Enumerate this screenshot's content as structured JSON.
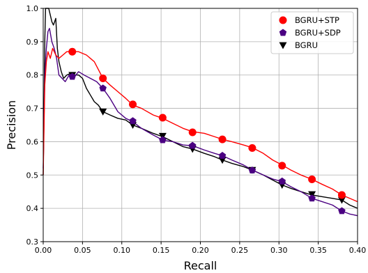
{
  "chart_data": {
    "type": "line",
    "xlabel": "Recall",
    "ylabel": "Precision",
    "xlim": [
      0.0,
      0.4
    ],
    "ylim": [
      0.3,
      1.0
    ],
    "xticks": [
      "0.00",
      "0.05",
      "0.10",
      "0.15",
      "0.20",
      "0.25",
      "0.30",
      "0.35",
      "0.40"
    ],
    "yticks": [
      "0.3",
      "0.4",
      "0.5",
      "0.6",
      "0.7",
      "0.8",
      "0.9",
      "1.0"
    ],
    "grid": true,
    "legend_position": "top-right",
    "series": [
      {
        "name": "BGRU+STP",
        "color": "#ff0000",
        "marker": "circle",
        "x": [
          0.0,
          0.002,
          0.004,
          0.006,
          0.009,
          0.012,
          0.016,
          0.02,
          0.025,
          0.03,
          0.037,
          0.045,
          0.055,
          0.065,
          0.076,
          0.085,
          0.095,
          0.105,
          0.114,
          0.125,
          0.14,
          0.152,
          0.165,
          0.178,
          0.19,
          0.205,
          0.218,
          0.228,
          0.24,
          0.255,
          0.266,
          0.28,
          0.292,
          0.304,
          0.315,
          0.328,
          0.342,
          0.355,
          0.368,
          0.38,
          0.39,
          0.4
        ],
        "y": [
          0.5,
          0.77,
          0.84,
          0.87,
          0.85,
          0.88,
          0.86,
          0.85,
          0.86,
          0.87,
          0.87,
          0.87,
          0.86,
          0.84,
          0.79,
          0.77,
          0.75,
          0.73,
          0.71,
          0.7,
          0.68,
          0.67,
          0.655,
          0.64,
          0.63,
          0.625,
          0.615,
          0.607,
          0.6,
          0.59,
          0.582,
          0.565,
          0.545,
          0.53,
          0.515,
          0.5,
          0.487,
          0.472,
          0.458,
          0.44,
          0.43,
          0.42
        ],
        "marker_x": [
          0.037,
          0.076,
          0.114,
          0.152,
          0.19,
          0.228,
          0.266,
          0.304,
          0.342,
          0.38
        ],
        "marker_y": [
          0.87,
          0.79,
          0.712,
          0.672,
          0.628,
          0.607,
          0.581,
          0.528,
          0.487,
          0.44
        ]
      },
      {
        "name": "BGRU+SDP",
        "color": "#4b0082",
        "marker": "pentagon",
        "x": [
          0.0,
          0.002,
          0.004,
          0.006,
          0.008,
          0.011,
          0.014,
          0.017,
          0.02,
          0.024,
          0.028,
          0.033,
          0.038,
          0.045,
          0.052,
          0.06,
          0.068,
          0.076,
          0.085,
          0.095,
          0.105,
          0.114,
          0.125,
          0.14,
          0.152,
          0.165,
          0.178,
          0.19,
          0.205,
          0.218,
          0.228,
          0.24,
          0.255,
          0.266,
          0.28,
          0.292,
          0.304,
          0.315,
          0.328,
          0.342,
          0.355,
          0.368,
          0.38,
          0.39,
          0.4
        ],
        "y": [
          0.52,
          0.8,
          0.88,
          0.93,
          0.94,
          0.9,
          0.88,
          0.85,
          0.8,
          0.79,
          0.78,
          0.8,
          0.79,
          0.81,
          0.8,
          0.79,
          0.78,
          0.76,
          0.73,
          0.69,
          0.67,
          0.66,
          0.64,
          0.62,
          0.605,
          0.6,
          0.59,
          0.588,
          0.575,
          0.565,
          0.558,
          0.545,
          0.53,
          0.515,
          0.5,
          0.488,
          0.48,
          0.465,
          0.45,
          0.43,
          0.42,
          0.41,
          0.392,
          0.383,
          0.378
        ],
        "marker_x": [
          0.037,
          0.076,
          0.114,
          0.152,
          0.19,
          0.228,
          0.266,
          0.304,
          0.342,
          0.38
        ],
        "marker_y": [
          0.795,
          0.76,
          0.662,
          0.605,
          0.588,
          0.558,
          0.514,
          0.481,
          0.43,
          0.392
        ]
      },
      {
        "name": "BGRU",
        "color": "#000000",
        "marker": "triangle-down",
        "x": [
          0.0,
          0.001,
          0.002,
          0.003,
          0.005,
          0.007,
          0.009,
          0.011,
          0.013,
          0.016,
          0.018,
          0.02,
          0.023,
          0.026,
          0.03,
          0.035,
          0.04,
          0.045,
          0.05,
          0.055,
          0.06,
          0.065,
          0.07,
          0.076,
          0.085,
          0.095,
          0.105,
          0.114,
          0.125,
          0.14,
          0.152,
          0.165,
          0.178,
          0.19,
          0.205,
          0.218,
          0.228,
          0.24,
          0.255,
          0.266,
          0.28,
          0.292,
          0.304,
          0.315,
          0.328,
          0.342,
          0.355,
          0.368,
          0.38,
          0.39,
          0.4
        ],
        "y": [
          0.5,
          0.7,
          0.9,
          1.0,
          1.0,
          1.0,
          0.98,
          0.96,
          0.95,
          0.97,
          0.88,
          0.84,
          0.81,
          0.79,
          0.8,
          0.805,
          0.8,
          0.8,
          0.79,
          0.76,
          0.74,
          0.72,
          0.71,
          0.69,
          0.68,
          0.67,
          0.665,
          0.65,
          0.64,
          0.625,
          0.615,
          0.6,
          0.585,
          0.578,
          0.565,
          0.555,
          0.545,
          0.535,
          0.525,
          0.515,
          0.5,
          0.485,
          0.47,
          0.46,
          0.45,
          0.44,
          0.435,
          0.43,
          0.425,
          0.41,
          0.4
        ],
        "marker_x": [
          0.037,
          0.076,
          0.114,
          0.152,
          0.19,
          0.228,
          0.266,
          0.304,
          0.342,
          0.38
        ],
        "marker_y": [
          0.8,
          0.69,
          0.65,
          0.617,
          0.578,
          0.545,
          0.515,
          0.47,
          0.442,
          0.425
        ]
      }
    ]
  }
}
